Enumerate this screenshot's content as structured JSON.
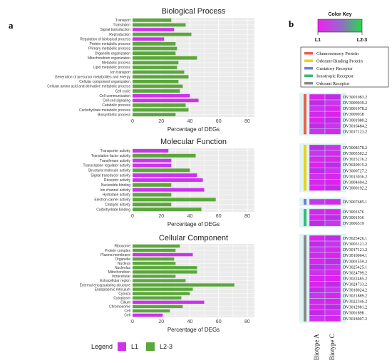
{
  "panel_labels": {
    "a": "a",
    "b": "b"
  },
  "chart_data": [
    {
      "type": "bar",
      "title": "Biological Process",
      "xlabel": "Percentage of DEGs",
      "xlim": [
        0,
        85
      ],
      "xticks": [
        "0",
        "20",
        "40",
        "60",
        "80"
      ],
      "categories": [
        "Transport",
        "Translation",
        "Signal transduction",
        "Reproduction",
        "Regulation of biological process",
        "Protein metabolic process",
        "Primary metabolic process",
        "Organelle organization",
        "Mitochondrion organization",
        "Metabolic process",
        "Lipid metabolic process",
        "Ion transport",
        "Generation of precursor metabolites and energy",
        "Cellular component organization",
        "Cellular amino acid and derivative metabolic process",
        "Cell cycle",
        "Cell communication",
        "Cell-cell signaling",
        "Catabolic process",
        "Carbohydrate metabolic process",
        "Biosynthetic process"
      ],
      "groups": [
        "L2-3",
        "L2-3",
        "L1",
        "L2-3",
        "L1",
        "L2-3",
        "L2-3",
        "L2-3",
        "L2-3",
        "L2-3",
        "L2-3",
        "L2-3",
        "L2-3",
        "L2-3",
        "L2-3",
        "L2-3",
        "L1",
        "L1",
        "L2-3",
        "L2-3",
        "L2-3"
      ],
      "values": [
        27,
        37,
        29,
        41,
        22,
        30,
        31,
        30,
        45,
        32,
        31,
        36,
        39,
        32,
        35,
        33,
        40,
        46,
        37,
        39,
        30
      ]
    },
    {
      "type": "bar",
      "title": "Molecular Function",
      "xlabel": "Percentage of DEGs",
      "xlim": [
        0,
        85
      ],
      "xticks": [
        "0",
        "20",
        "40",
        "60",
        "80"
      ],
      "categories": [
        "Transporter activity",
        "Translation factor activity",
        "Transferase activity",
        "Transcription regulator activity",
        "Structural molecule activity",
        "Signal transducer activity",
        "Receptor activity",
        "Nucleotide binding",
        "Ion channel activity",
        "Hydrolase activity",
        "Electron carrier activity",
        "Catalytic activity",
        "Carbohydrate binding"
      ],
      "groups": [
        "L1",
        "L2-3",
        "L1",
        "L1",
        "L2-3",
        "L1",
        "L1",
        "L2-3",
        "L1",
        "L2-3",
        "L2-3",
        "L2-3",
        "L2-3"
      ],
      "values": [
        25,
        44,
        27,
        27,
        40,
        45,
        49,
        27,
        50,
        27,
        58,
        27,
        48
      ]
    },
    {
      "type": "bar",
      "title": "Cellular Component",
      "xlabel": "Percentage of DEGs",
      "xlim": [
        0,
        85
      ],
      "xticks": [
        "0",
        "20",
        "40",
        "60",
        "80"
      ],
      "categories": [
        "Ribosome",
        "Protein complex",
        "Plasma membrane",
        "Organelle",
        "Nucleus",
        "Nucleolus",
        "Mitochondrion",
        "Intracellular",
        "Extracellular region",
        "External encapsulating structure",
        "Endoplasmic reticulum",
        "Cytosol",
        "Cytoplasm",
        "Cilium",
        "Chromosome",
        "Cell",
        "Cell"
      ],
      "groups": [
        "L2-3",
        "L2-3",
        "L1",
        "L2-3",
        "L2-3",
        "L2-3",
        "L2-3",
        "L2-3",
        "L2-3",
        "L2-3",
        "L2-3",
        "L2-3",
        "L2-3",
        "L1",
        "L2-3",
        "L2-3",
        "L1"
      ],
      "values": [
        33,
        30,
        42,
        29,
        30,
        45,
        45,
        30,
        37,
        71,
        42,
        40,
        34,
        50,
        35,
        26,
        21
      ]
    },
    {
      "type": "heatmap",
      "color_key_title": "Color Key",
      "color_key_labels": [
        "L1",
        "L2-3"
      ],
      "columns": [
        "Biotype A",
        "Biotype C"
      ],
      "legend": [
        {
          "name": "Chemosensory Protein",
          "color": "#e8614f"
        },
        {
          "name": "Odorant-Binding Protein",
          "color": "#e8d21e"
        },
        {
          "name": "Gustatory Receptor",
          "color": "#6e7fd8"
        },
        {
          "name": "Ionotropic Receptor",
          "color": "#3cb878"
        },
        {
          "name": "Odorant Receptor",
          "color": "#8a8a8a"
        }
      ],
      "groups": [
        {
          "family": "Chemosensory Protein",
          "rows": [
            "DV3001983.2",
            "DV3009939.2",
            "DV3001978.2",
            "DV3009938",
            "DV3001980.2",
            "DV3016484.2",
            "DV3017123.2"
          ]
        },
        {
          "family": "Odorant-Binding Protein",
          "rows": [
            "DV3008378.2",
            "DV3005502.2",
            "DV3023216.2",
            "DV3020915.2",
            "DV3000727.2",
            "DV3013036.2",
            "DV3004694.2",
            "DV3000192.2"
          ]
        },
        {
          "family": "Gustatory Receptor",
          "rows": [
            "DV3007685.1"
          ]
        },
        {
          "family": "Ionotropic Receptor",
          "rows": [
            "DV3001676",
            "DV3001936",
            "DV3006519"
          ]
        },
        {
          "family": "Odorant Receptor",
          "rows": [
            "DV3025426.1",
            "DV3003121.2",
            "DV3017121.2",
            "DV3010064.1",
            "DV3001559.2",
            "DV3025425.1",
            "DV3024799.2",
            "DV3022485.2",
            "DV3024733.2",
            "DV3018024.2",
            "DV3021889.2",
            "DV3022346.2",
            "DV3012981.2",
            "DV3001898",
            "DV3018907.2"
          ]
        }
      ]
    }
  ],
  "legend_bottom": {
    "title": "Legend",
    "items": [
      {
        "label": "L1",
        "color": "#cc33ee"
      },
      {
        "label": "L2-3",
        "color": "#5aa83a"
      }
    ]
  },
  "colors": {
    "L1": "#cc33ee",
    "L2-3": "#5aa83a",
    "panel_bg": "#ebebeb",
    "grid": "#ffffff"
  }
}
